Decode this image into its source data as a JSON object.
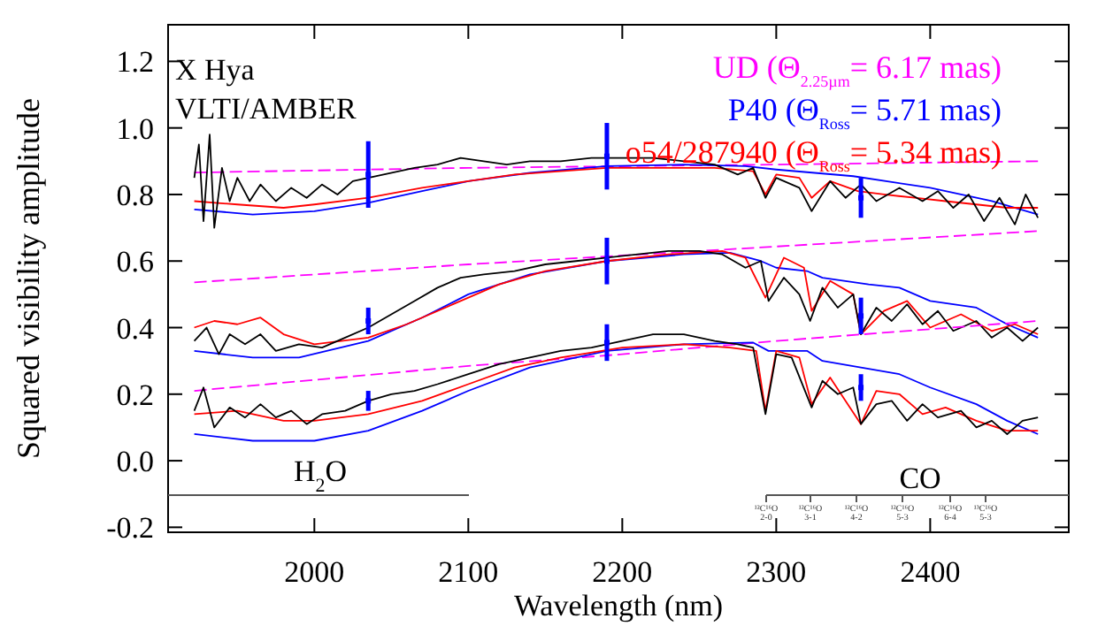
{
  "chart_data": {
    "type": "line",
    "xlabel": "Wavelength (nm)",
    "ylabel": "Squared visibility amplitude",
    "xlim": [
      1905,
      2490
    ],
    "ylim": [
      -0.215,
      1.31
    ],
    "xticks": [
      2000,
      2100,
      2200,
      2300,
      2400
    ],
    "yticks": [
      {
        "value": -0.2,
        "label": "-0.2"
      },
      {
        "value": 0,
        "label": "0.0"
      },
      0.2,
      0.4,
      0.6,
      0.8,
      {
        "value": 1,
        "label": "1.0"
      },
      1.2
    ],
    "legend": "top right",
    "grid": false,
    "annotations": [
      "X Hya",
      "VLTI/AMBER",
      "H$_{2}$O",
      "CO",
      "¹²C¹⁶O 2-0",
      "¹²C¹⁶O 3-1",
      "¹²C¹⁶O 4-2",
      "¹²C¹⁶O 5-3",
      "¹²C¹⁶O 6-4",
      "¹³C¹⁶O 5-3"
    ],
    "series": [
      {
        "name": "UD (Θ$_{2.25µm}$= 6.17 mas)",
        "color": "#ff00ff",
        "line_style": "dashed",
        "x": [
          1922,
          2100,
          2300,
          2470
        ],
        "values": [
          0.866,
          0.88,
          0.89,
          0.9
        ]
      },
      {
        "name": "P40 (Θ$_{Ross}$= 5.71 mas)",
        "color": "#0000ff",
        "x": [
          1922,
          1960,
          2000,
          2035,
          2070,
          2100,
          2140,
          2190,
          2240,
          2280,
          2300,
          2350,
          2400,
          2440,
          2470
        ],
        "values": [
          0.755,
          0.74,
          0.75,
          0.775,
          0.81,
          0.84,
          0.865,
          0.885,
          0.89,
          0.885,
          0.875,
          0.855,
          0.82,
          0.78,
          0.74
        ]
      },
      {
        "name": "o54/287940 (Θ$_{Ross}$= 5.34 mas)",
        "color": "#ff0000",
        "x": [
          1922,
          1950,
          1980,
          2000,
          2035,
          2070,
          2100,
          2130,
          2160,
          2190,
          2220,
          2260,
          2285,
          2293,
          2300,
          2315,
          2323,
          2335,
          2353,
          2370,
          2390,
          2410,
          2430,
          2450,
          2470
        ],
        "values": [
          0.78,
          0.77,
          0.76,
          0.77,
          0.79,
          0.82,
          0.84,
          0.86,
          0.87,
          0.88,
          0.88,
          0.88,
          0.87,
          0.8,
          0.86,
          0.85,
          0.79,
          0.84,
          0.81,
          0.8,
          0.79,
          0.78,
          0.77,
          0.76,
          0.76
        ]
      },
      {
        "color": "#000000",
        "x": [
          1922,
          1925,
          1928,
          1932,
          1935,
          1940,
          1945,
          1950,
          1958,
          1965,
          1975,
          1985,
          1995,
          2005,
          2015,
          2025,
          2035,
          2045,
          2055,
          2065,
          2080,
          2095,
          2110,
          2125,
          2140,
          2160,
          2180,
          2200,
          2220,
          2240,
          2260,
          2275,
          2285,
          2293,
          2300,
          2315,
          2323,
          2335,
          2345,
          2355,
          2365,
          2380,
          2395,
          2405,
          2415,
          2425,
          2435,
          2445,
          2455,
          2462,
          2470
        ],
        "values": [
          0.85,
          0.95,
          0.72,
          0.98,
          0.7,
          0.88,
          0.78,
          0.85,
          0.78,
          0.83,
          0.78,
          0.82,
          0.79,
          0.83,
          0.8,
          0.84,
          0.85,
          0.86,
          0.87,
          0.88,
          0.89,
          0.91,
          0.9,
          0.89,
          0.9,
          0.9,
          0.91,
          0.91,
          0.91,
          0.9,
          0.89,
          0.86,
          0.88,
          0.79,
          0.85,
          0.82,
          0.75,
          0.84,
          0.79,
          0.83,
          0.78,
          0.82,
          0.78,
          0.81,
          0.76,
          0.8,
          0.72,
          0.79,
          0.71,
          0.8,
          0.73
        ]
      },
      {
        "type": "scatter",
        "color": "#0000ff",
        "x": [
          2035,
          2190,
          2355
        ],
        "values": [
          0.86,
          0.915,
          0.79
        ],
        "errors": [
          0.1,
          0.1,
          0.06
        ]
      },
      {
        "color": "#ff00ff",
        "line_style": "dashed",
        "x": [
          1922,
          2100,
          2250,
          2470
        ],
        "values": [
          0.536,
          0.59,
          0.63,
          0.69
        ]
      },
      {
        "color": "#0000ff",
        "x": [
          1922,
          1960,
          1990,
          2035,
          2070,
          2100,
          2140,
          2190,
          2240,
          2270,
          2290,
          2300,
          2320,
          2330,
          2360,
          2380,
          2400,
          2430,
          2450,
          2470
        ],
        "values": [
          0.33,
          0.31,
          0.31,
          0.36,
          0.43,
          0.5,
          0.56,
          0.6,
          0.62,
          0.625,
          0.6,
          0.58,
          0.57,
          0.55,
          0.53,
          0.52,
          0.48,
          0.46,
          0.41,
          0.37
        ]
      },
      {
        "color": "#ff0000",
        "x": [
          1922,
          1935,
          1950,
          1965,
          1980,
          2000,
          2035,
          2060,
          2090,
          2120,
          2150,
          2190,
          2230,
          2265,
          2280,
          2293,
          2305,
          2318,
          2323,
          2335,
          2350,
          2355,
          2370,
          2385,
          2400,
          2420,
          2440,
          2455,
          2470
        ],
        "values": [
          0.4,
          0.42,
          0.41,
          0.43,
          0.38,
          0.35,
          0.37,
          0.41,
          0.47,
          0.53,
          0.57,
          0.6,
          0.62,
          0.63,
          0.61,
          0.49,
          0.61,
          0.58,
          0.45,
          0.54,
          0.5,
          0.38,
          0.45,
          0.48,
          0.4,
          0.44,
          0.39,
          0.41,
          0.38
        ]
      },
      {
        "color": "#000000",
        "x": [
          1922,
          1930,
          1938,
          1945,
          1955,
          1965,
          1975,
          1990,
          2005,
          2020,
          2035,
          2050,
          2065,
          2080,
          2095,
          2110,
          2130,
          2150,
          2170,
          2190,
          2210,
          2230,
          2250,
          2265,
          2280,
          2290,
          2295,
          2305,
          2315,
          2322,
          2330,
          2340,
          2350,
          2355,
          2365,
          2375,
          2385,
          2395,
          2405,
          2415,
          2430,
          2440,
          2450,
          2460,
          2470
        ],
        "values": [
          0.36,
          0.4,
          0.32,
          0.38,
          0.35,
          0.38,
          0.33,
          0.35,
          0.34,
          0.37,
          0.4,
          0.44,
          0.48,
          0.52,
          0.55,
          0.56,
          0.57,
          0.59,
          0.6,
          0.61,
          0.62,
          0.63,
          0.63,
          0.62,
          0.58,
          0.6,
          0.48,
          0.55,
          0.5,
          0.42,
          0.52,
          0.46,
          0.5,
          0.38,
          0.46,
          0.42,
          0.47,
          0.41,
          0.45,
          0.39,
          0.42,
          0.37,
          0.4,
          0.36,
          0.4
        ]
      },
      {
        "type": "scatter",
        "color": "#0000ff",
        "x": [
          2035,
          2190,
          2355
        ],
        "values": [
          0.42,
          0.6,
          0.435
        ],
        "errors": [
          0.04,
          0.07,
          0.055
        ]
      },
      {
        "color": "#ff00ff",
        "line_style": "dashed",
        "x": [
          1922,
          2100,
          2200,
          2300,
          2470
        ],
        "values": [
          0.21,
          0.285,
          0.32,
          0.36,
          0.42
        ]
      },
      {
        "color": "#0000ff",
        "x": [
          1922,
          1960,
          2000,
          2035,
          2070,
          2100,
          2140,
          2190,
          2240,
          2285,
          2295,
          2320,
          2330,
          2355,
          2380,
          2400,
          2430,
          2450,
          2470
        ],
        "values": [
          0.08,
          0.06,
          0.06,
          0.09,
          0.15,
          0.21,
          0.28,
          0.33,
          0.35,
          0.355,
          0.33,
          0.33,
          0.3,
          0.28,
          0.26,
          0.22,
          0.17,
          0.12,
          0.08
        ]
      },
      {
        "color": "#ff0000",
        "x": [
          1922,
          1950,
          1980,
          2000,
          2035,
          2070,
          2100,
          2130,
          2160,
          2200,
          2240,
          2270,
          2287,
          2293,
          2300,
          2315,
          2323,
          2335,
          2355,
          2365,
          2380,
          2395,
          2410,
          2430,
          2450,
          2470
        ],
        "values": [
          0.14,
          0.15,
          0.12,
          0.12,
          0.14,
          0.18,
          0.23,
          0.28,
          0.31,
          0.34,
          0.35,
          0.34,
          0.33,
          0.15,
          0.33,
          0.31,
          0.17,
          0.25,
          0.11,
          0.21,
          0.2,
          0.14,
          0.16,
          0.12,
          0.09,
          0.09
        ]
      },
      {
        "color": "#000000",
        "x": [
          1922,
          1928,
          1935,
          1945,
          1955,
          1965,
          1975,
          1985,
          1995,
          2005,
          2020,
          2035,
          2050,
          2065,
          2080,
          2100,
          2120,
          2140,
          2160,
          2180,
          2200,
          2220,
          2240,
          2260,
          2275,
          2285,
          2293,
          2300,
          2310,
          2323,
          2330,
          2340,
          2350,
          2355,
          2365,
          2375,
          2385,
          2395,
          2405,
          2420,
          2430,
          2440,
          2450,
          2460,
          2470
        ],
        "values": [
          0.15,
          0.22,
          0.1,
          0.16,
          0.13,
          0.17,
          0.13,
          0.15,
          0.11,
          0.14,
          0.15,
          0.18,
          0.2,
          0.21,
          0.23,
          0.26,
          0.29,
          0.31,
          0.33,
          0.34,
          0.36,
          0.38,
          0.38,
          0.36,
          0.35,
          0.34,
          0.14,
          0.32,
          0.31,
          0.16,
          0.24,
          0.2,
          0.22,
          0.11,
          0.17,
          0.18,
          0.12,
          0.17,
          0.13,
          0.15,
          0.1,
          0.12,
          0.08,
          0.12,
          0.13
        ]
      },
      {
        "type": "scatter",
        "color": "#0000ff",
        "x": [
          2035,
          2190,
          2355
        ],
        "values": [
          0.18,
          0.355,
          0.22
        ],
        "errors": [
          0.03,
          0.055,
          0.04
        ]
      }
    ]
  }
}
